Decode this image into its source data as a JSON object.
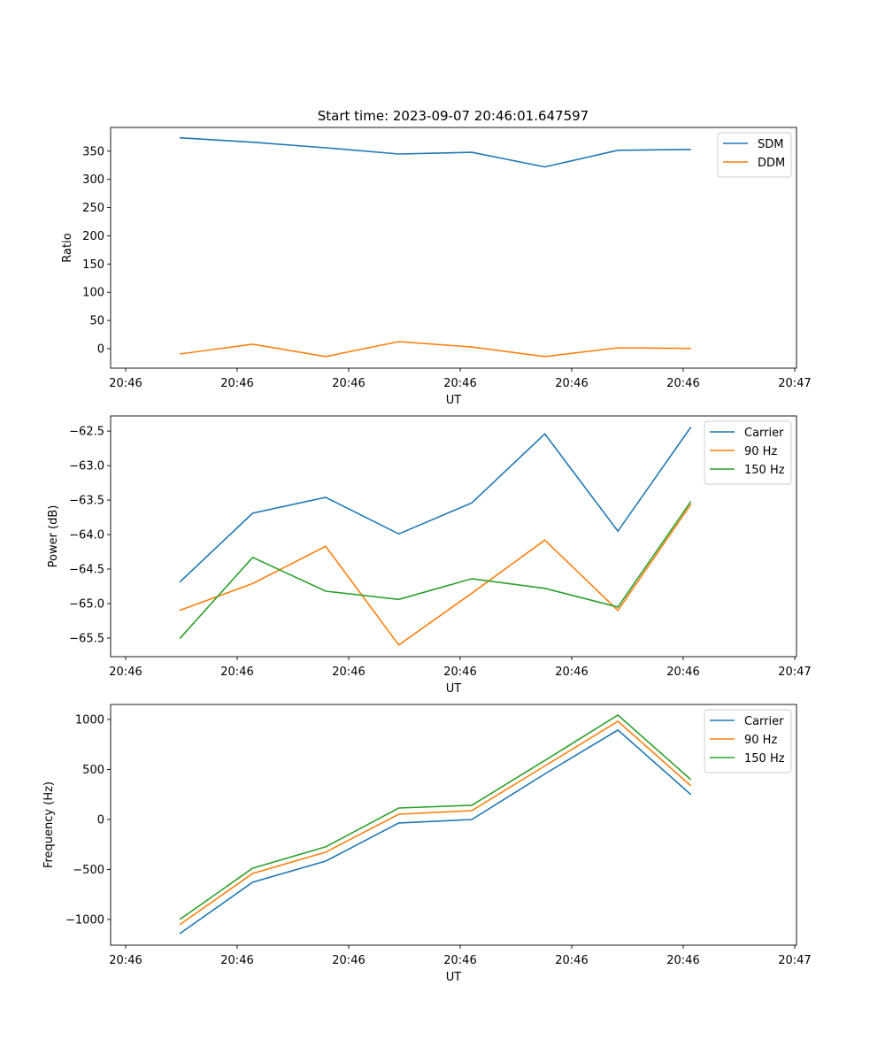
{
  "title": "Start time: 2023-09-07 20:46:01.647597",
  "colors": {
    "blue": "#1f77b4",
    "orange": "#ff7f0e",
    "green": "#2ca02c"
  },
  "chart_data": [
    {
      "type": "line",
      "xlabel": "UT",
      "ylabel": "Ratio",
      "x_units": "seconds after 20:46:00",
      "x": [
        4.84,
        11.39,
        17.94,
        24.49,
        31.04,
        37.59,
        44.14,
        50.69
      ],
      "xlim": [
        -1.35,
        60.16
      ],
      "xticks": [
        0,
        10,
        20,
        30,
        40,
        50,
        60
      ],
      "xtick_labels": [
        "20:46",
        "20:46",
        "20:46",
        "20:46",
        "20:46",
        "20:46",
        "20:47"
      ],
      "ylim": [
        -34.5,
        392
      ],
      "yticks": [
        0,
        50,
        100,
        150,
        200,
        250,
        300,
        350
      ],
      "ytick_labels": [
        "0",
        "50",
        "100",
        "150",
        "200",
        "250",
        "300",
        "350"
      ],
      "legend": "top-right",
      "series": [
        {
          "name": "SDM",
          "color": "#1f77b4",
          "values": [
            373.6,
            365.8,
            356,
            345,
            348,
            322,
            351.6,
            353
          ]
        },
        {
          "name": "DDM",
          "color": "#ff7f0e",
          "values": [
            -9.4,
            8,
            -14,
            12.6,
            3,
            -14,
            1.5,
            0.5
          ]
        }
      ]
    },
    {
      "type": "line",
      "xlabel": "UT",
      "ylabel": "Power (dB)",
      "x_units": "seconds after 20:46:00",
      "x": [
        4.84,
        11.39,
        17.94,
        24.49,
        31.04,
        37.59,
        44.14,
        50.69
      ],
      "xlim": [
        -1.35,
        60.16
      ],
      "xticks": [
        0,
        10,
        20,
        30,
        40,
        50,
        60
      ],
      "xtick_labels": [
        "20:46",
        "20:46",
        "20:46",
        "20:46",
        "20:46",
        "20:46",
        "20:47"
      ],
      "ylim": [
        -65.77,
        -62.28
      ],
      "yticks": [
        -65.5,
        -65.0,
        -64.5,
        -64.0,
        -63.5,
        -63.0,
        -62.5
      ],
      "ytick_labels": [
        "−65.5",
        "−65.0",
        "−64.5",
        "−64.0",
        "−63.5",
        "−63.0",
        "−62.5"
      ],
      "legend": "top-right",
      "series": [
        {
          "name": "Carrier",
          "color": "#1f77b4",
          "values": [
            -64.69,
            -63.69,
            -63.46,
            -63.99,
            -63.54,
            -62.54,
            -63.95,
            -62.44
          ]
        },
        {
          "name": "90 Hz",
          "color": "#ff7f0e",
          "values": [
            -65.1,
            -64.71,
            -64.17,
            -65.6,
            -64.85,
            -64.08,
            -65.1,
            -63.56
          ]
        },
        {
          "name": "150 Hz",
          "color": "#2ca02c",
          "values": [
            -65.51,
            -64.33,
            -64.82,
            -64.94,
            -64.64,
            -64.78,
            -65.05,
            -63.52
          ]
        }
      ]
    },
    {
      "type": "line",
      "xlabel": "UT",
      "ylabel": "Frequency (Hz)",
      "x_units": "seconds after 20:46:00",
      "x": [
        4.84,
        11.39,
        17.94,
        24.49,
        31.04,
        37.59,
        44.14,
        50.69
      ],
      "xlim": [
        -1.35,
        60.16
      ],
      "xticks": [
        0,
        10,
        20,
        30,
        40,
        50,
        60
      ],
      "xtick_labels": [
        "20:46",
        "20:46",
        "20:46",
        "20:46",
        "20:46",
        "20:46",
        "20:47"
      ],
      "ylim": [
        -1257,
        1150
      ],
      "yticks": [
        -1000,
        -500,
        0,
        500,
        1000
      ],
      "ytick_labels": [
        "−1000",
        "−500",
        "0",
        "500",
        "1000"
      ],
      "legend": "top-right",
      "series": [
        {
          "name": "Carrier",
          "color": "#1f77b4",
          "values": [
            -1142,
            -628,
            -416,
            -35,
            0,
            455,
            894,
            248
          ]
        },
        {
          "name": "90 Hz",
          "color": "#ff7f0e",
          "values": [
            -1053,
            -540,
            -327,
            53,
            88,
            535,
            982,
            336
          ]
        },
        {
          "name": "150 Hz",
          "color": "#2ca02c",
          "values": [
            -1000,
            -487,
            -274,
            115,
            142,
            590,
            1044,
            398
          ]
        }
      ]
    }
  ]
}
